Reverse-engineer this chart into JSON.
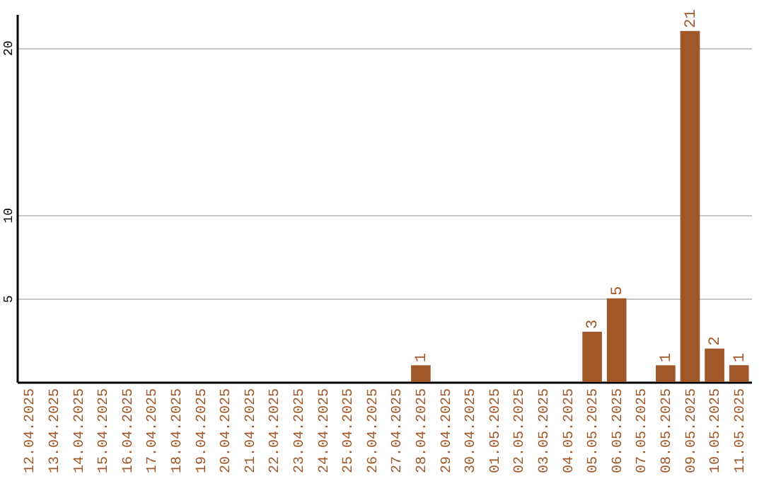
{
  "chart_data": {
    "type": "bar",
    "categories": [
      "12.04.2025",
      "13.04.2025",
      "14.04.2025",
      "15.04.2025",
      "16.04.2025",
      "17.04.2025",
      "18.04.2025",
      "19.04.2025",
      "20.04.2025",
      "21.04.2025",
      "22.04.2025",
      "23.04.2025",
      "24.04.2025",
      "25.04.2025",
      "26.04.2025",
      "27.04.2025",
      "28.04.2025",
      "29.04.2025",
      "30.04.2025",
      "01.05.2025",
      "02.05.2025",
      "03.05.2025",
      "04.05.2025",
      "05.05.2025",
      "06.05.2025",
      "07.05.2025",
      "08.05.2025",
      "09.05.2025",
      "10.05.2025",
      "11.05.2025"
    ],
    "values": [
      0,
      0,
      0,
      0,
      0,
      0,
      0,
      0,
      0,
      0,
      0,
      0,
      0,
      0,
      0,
      0,
      1,
      0,
      0,
      0,
      0,
      0,
      0,
      3,
      5,
      0,
      1,
      21,
      2,
      1
    ],
    "value_labels": [
      null,
      null,
      null,
      null,
      null,
      null,
      null,
      null,
      null,
      null,
      null,
      null,
      null,
      null,
      null,
      null,
      "1",
      null,
      null,
      null,
      null,
      null,
      null,
      "3",
      "5",
      null,
      "1",
      "21",
      "2",
      "1"
    ],
    "color": "#a0582a",
    "ylim": [
      0,
      22
    ],
    "yticks": [
      5,
      10,
      20
    ],
    "grid": "y"
  }
}
